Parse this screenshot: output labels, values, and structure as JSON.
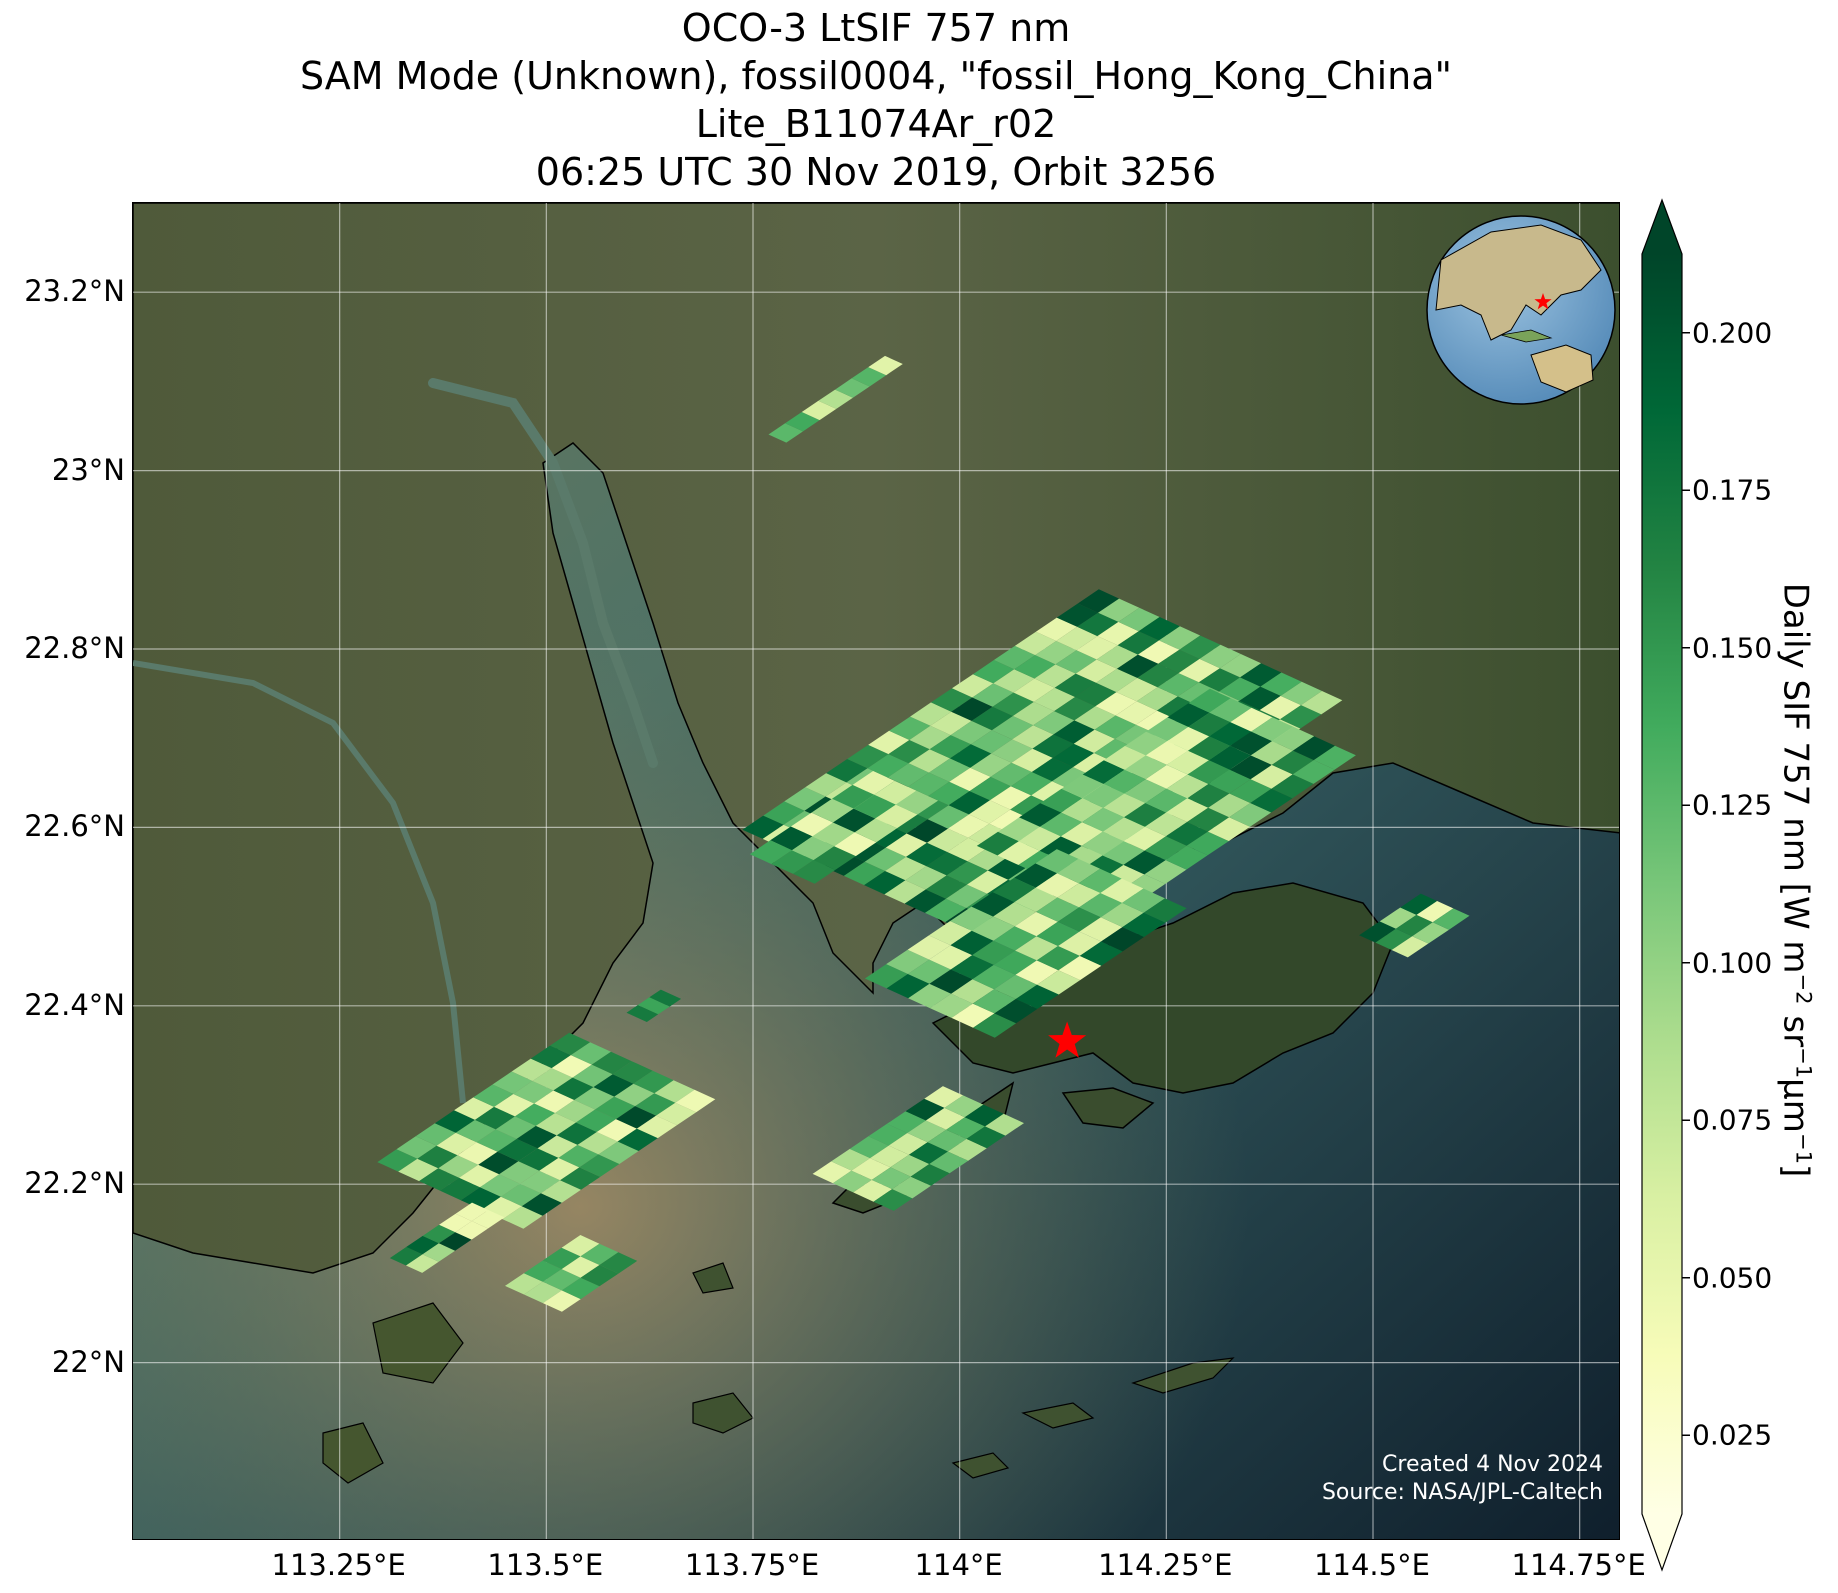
{
  "title": {
    "line1": "OCO-3 LtSIF 757 nm",
    "line2": "SAM Mode (Unknown), fossil0004, \"fossil_Hong_Kong_China\"",
    "line3": "Lite_B11074Ar_r02",
    "line4": "06:25 UTC 30 Nov 2019, Orbit 3256"
  },
  "map": {
    "extent": {
      "lon": [
        113.0,
        114.8
      ],
      "lat": [
        21.8,
        23.3
      ]
    },
    "lat_ticks": [
      {
        "value": 23.2,
        "label": "23.2°N"
      },
      {
        "value": 23.0,
        "label": "23°N"
      },
      {
        "value": 22.8,
        "label": "22.8°N"
      },
      {
        "value": 22.6,
        "label": "22.6°N"
      },
      {
        "value": 22.4,
        "label": "22.4°N"
      },
      {
        "value": 22.2,
        "label": "22.2°N"
      },
      {
        "value": 22.0,
        "label": "22°N"
      }
    ],
    "lon_ticks": [
      {
        "value": 113.25,
        "label": "113.25°E"
      },
      {
        "value": 113.5,
        "label": "113.5°E"
      },
      {
        "value": 113.75,
        "label": "113.75°E"
      },
      {
        "value": 114.0,
        "label": "114°E"
      },
      {
        "value": 114.25,
        "label": "114.25°E"
      },
      {
        "value": 114.5,
        "label": "114.5°E"
      },
      {
        "value": 114.75,
        "label": "114.75°E"
      }
    ],
    "target": {
      "lon": 114.13,
      "lat": 22.36,
      "marker": "red-star",
      "color": "#ff0000"
    },
    "sounding_swaths": [
      {
        "lon": 113.85,
        "lat": 23.08,
        "length_deg": 0.17,
        "width_deg": 0.022,
        "rows": 1,
        "cols": 7
      },
      {
        "lon": 114.1,
        "lat": 22.67,
        "length_deg": 0.52,
        "width_deg": 0.3,
        "rows": 12,
        "cols": 17
      },
      {
        "lon": 114.25,
        "lat": 22.63,
        "length_deg": 0.34,
        "width_deg": 0.18,
        "rows": 7,
        "cols": 11
      },
      {
        "lon": 114.08,
        "lat": 22.47,
        "length_deg": 0.28,
        "width_deg": 0.16,
        "rows": 6,
        "cols": 9
      },
      {
        "lon": 113.86,
        "lat": 22.6,
        "length_deg": 0.18,
        "width_deg": 0.08,
        "rows": 3,
        "cols": 6
      },
      {
        "lon": 113.95,
        "lat": 22.24,
        "length_deg": 0.19,
        "width_deg": 0.1,
        "rows": 4,
        "cols": 7
      },
      {
        "lon": 113.5,
        "lat": 22.26,
        "length_deg": 0.28,
        "width_deg": 0.18,
        "rows": 7,
        "cols": 10
      },
      {
        "lon": 113.38,
        "lat": 22.14,
        "length_deg": 0.12,
        "width_deg": 0.04,
        "rows": 2,
        "cols": 5
      },
      {
        "lon": 113.53,
        "lat": 22.1,
        "length_deg": 0.11,
        "width_deg": 0.07,
        "rows": 3,
        "cols": 4
      },
      {
        "lon": 114.55,
        "lat": 22.49,
        "length_deg": 0.09,
        "width_deg": 0.06,
        "rows": 3,
        "cols": 3
      },
      {
        "lon": 113.63,
        "lat": 22.4,
        "length_deg": 0.05,
        "width_deg": 0.025,
        "rows": 1,
        "cols": 3
      }
    ],
    "credit_line1": "Created 4 Nov 2024",
    "credit_line2": "Source: NASA/JPL-Caltech"
  },
  "inset_globe": {
    "target_marker": "red-star"
  },
  "colorbar": {
    "colormap": "YlGn",
    "min": 0.0125,
    "max": 0.2125,
    "extend": "both",
    "colors": [
      "#ffffe5",
      "#f7fcb9",
      "#d9f0a3",
      "#addd8e",
      "#78c679",
      "#41ab5d",
      "#238443",
      "#006837",
      "#004529"
    ],
    "ticks": [
      {
        "value": 0.2,
        "label": "0.200"
      },
      {
        "value": 0.175,
        "label": "0.175"
      },
      {
        "value": 0.15,
        "label": "0.150"
      },
      {
        "value": 0.125,
        "label": "0.125"
      },
      {
        "value": 0.1,
        "label": "0.100"
      },
      {
        "value": 0.075,
        "label": "0.075"
      },
      {
        "value": 0.05,
        "label": "0.050"
      },
      {
        "value": 0.025,
        "label": "0.025"
      }
    ],
    "label_text": "Daily SIF 757 nm [W m",
    "label_exp1": "−2",
    "label_mid1": " sr",
    "label_exp2": "−1",
    "label_mid2": "μm",
    "label_exp3": "−1",
    "label_end": "]"
  }
}
